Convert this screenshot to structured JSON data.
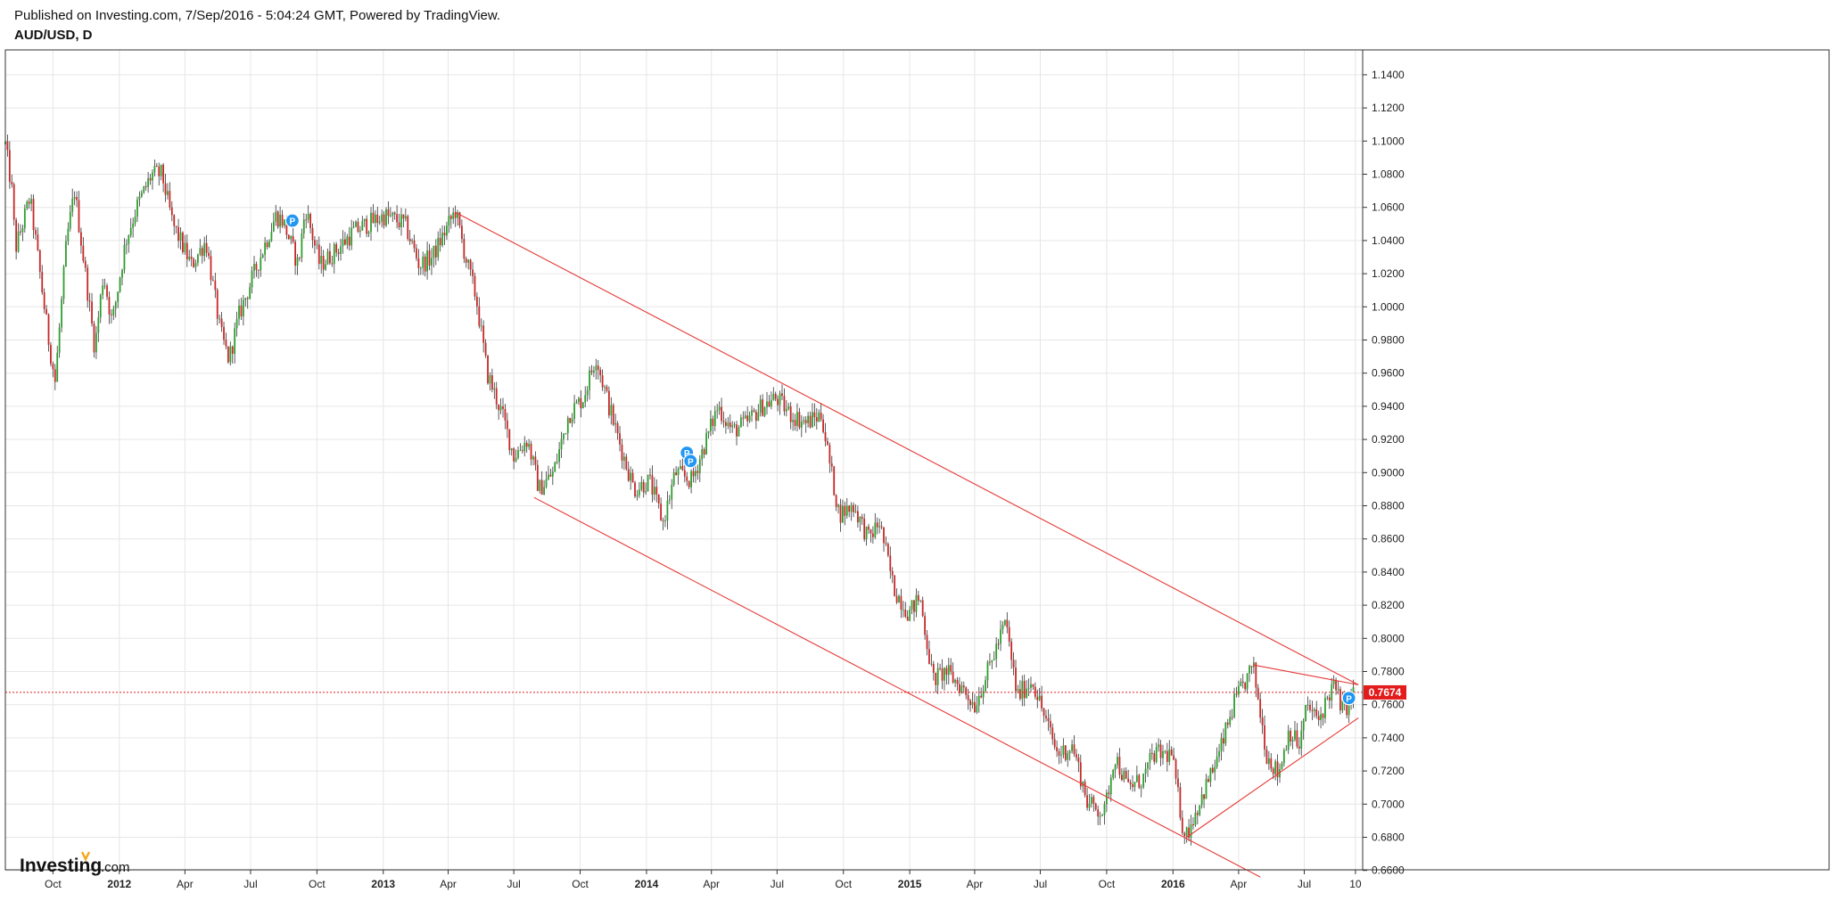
{
  "header": {
    "published_line": "Published on Investing.com, 7/Sep/2016 - 5:04:24 GMT, Powered by TradingView.",
    "symbol_line": "AUD/USD, D"
  },
  "logo": {
    "brand": "Investing",
    "suffix": ".com"
  },
  "colors": {
    "up_candle": "#2e9e2e",
    "down_candle": "#c62828",
    "trendline": "#e53935",
    "price_tag": "#e31b1b",
    "marker": "#2196f3",
    "grid": "#e6e6e6"
  },
  "chart_data": {
    "type": "candlestick",
    "title": "AUD/USD, D",
    "ylim": [
      0.655,
      1.155
    ],
    "x_range": [
      "2011-07-27",
      "2016-09-20"
    ],
    "y_ticks": [
      "1.1400",
      "1.1200",
      "1.1000",
      "1.0800",
      "1.0600",
      "1.0400",
      "1.0200",
      "1.0000",
      "0.9800",
      "0.9600",
      "0.9400",
      "0.9200",
      "0.9000",
      "0.8800",
      "0.8600",
      "0.8400",
      "0.8200",
      "0.8000",
      "0.7800",
      "0.7600",
      "0.7400",
      "0.7200",
      "0.7000",
      "0.6800",
      "0.6600"
    ],
    "x_ticks": [
      {
        "label": "Oct",
        "date": "2011-10-01",
        "bold": false
      },
      {
        "label": "2012",
        "date": "2012-01-01",
        "bold": true
      },
      {
        "label": "Apr",
        "date": "2012-04-01",
        "bold": false
      },
      {
        "label": "Jul",
        "date": "2012-07-01",
        "bold": false
      },
      {
        "label": "Oct",
        "date": "2012-10-01",
        "bold": false
      },
      {
        "label": "2013",
        "date": "2013-01-01",
        "bold": true
      },
      {
        "label": "Apr",
        "date": "2013-04-01",
        "bold": false
      },
      {
        "label": "Jul",
        "date": "2013-07-01",
        "bold": false
      },
      {
        "label": "Oct",
        "date": "2013-10-01",
        "bold": false
      },
      {
        "label": "2014",
        "date": "2014-01-01",
        "bold": true
      },
      {
        "label": "Apr",
        "date": "2014-04-01",
        "bold": false
      },
      {
        "label": "Jul",
        "date": "2014-07-01",
        "bold": false
      },
      {
        "label": "Oct",
        "date": "2014-10-01",
        "bold": false
      },
      {
        "label": "2015",
        "date": "2015-01-01",
        "bold": true
      },
      {
        "label": "Apr",
        "date": "2015-04-01",
        "bold": false
      },
      {
        "label": "Jul",
        "date": "2015-07-01",
        "bold": false
      },
      {
        "label": "Oct",
        "date": "2015-10-01",
        "bold": false
      },
      {
        "label": "2016",
        "date": "2016-01-01",
        "bold": true
      },
      {
        "label": "Apr",
        "date": "2016-04-01",
        "bold": false
      },
      {
        "label": "Jul",
        "date": "2016-07-01",
        "bold": false
      },
      {
        "label": "10",
        "date": "2016-09-10",
        "bold": false
      }
    ],
    "last_price": 0.7674,
    "last_price_label": "0.7674",
    "price_path": [
      [
        "2011-07-27",
        1.098
      ],
      [
        "2011-08-05",
        1.07
      ],
      [
        "2011-08-10",
        1.035
      ],
      [
        "2011-08-20",
        1.05
      ],
      [
        "2011-08-30",
        1.066
      ],
      [
        "2011-09-10",
        1.03
      ],
      [
        "2011-09-25",
        0.98
      ],
      [
        "2011-10-04",
        0.955
      ],
      [
        "2011-10-20",
        1.04
      ],
      [
        "2011-10-31",
        1.07
      ],
      [
        "2011-11-15",
        1.02
      ],
      [
        "2011-11-28",
        0.975
      ],
      [
        "2011-12-10",
        1.02
      ],
      [
        "2011-12-22",
        0.99
      ],
      [
        "2012-01-10",
        1.04
      ],
      [
        "2012-01-25",
        1.06
      ],
      [
        "2012-02-15",
        1.08
      ],
      [
        "2012-02-29",
        1.08
      ],
      [
        "2012-03-15",
        1.05
      ],
      [
        "2012-04-10",
        1.025
      ],
      [
        "2012-04-30",
        1.04
      ],
      [
        "2012-05-20",
        0.985
      ],
      [
        "2012-06-01",
        0.968
      ],
      [
        "2012-06-15",
        0.995
      ],
      [
        "2012-07-10",
        1.025
      ],
      [
        "2012-08-05",
        1.055
      ],
      [
        "2012-08-15",
        1.052
      ],
      [
        "2012-09-05",
        1.025
      ],
      [
        "2012-09-15",
        1.06
      ],
      [
        "2012-10-05",
        1.025
      ],
      [
        "2012-10-30",
        1.035
      ],
      [
        "2012-11-20",
        1.045
      ],
      [
        "2012-12-10",
        1.05
      ],
      [
        "2013-01-03",
        1.055
      ],
      [
        "2013-01-31",
        1.05
      ],
      [
        "2013-02-20",
        1.025
      ],
      [
        "2013-03-10",
        1.03
      ],
      [
        "2013-04-11",
        1.058
      ],
      [
        "2013-04-25",
        1.03
      ],
      [
        "2013-05-10",
        1.005
      ],
      [
        "2013-05-25",
        0.96
      ],
      [
        "2013-06-15",
        0.935
      ],
      [
        "2013-07-01",
        0.91
      ],
      [
        "2013-07-20",
        0.92
      ],
      [
        "2013-08-05",
        0.89
      ],
      [
        "2013-08-25",
        0.9
      ],
      [
        "2013-09-15",
        0.935
      ],
      [
        "2013-10-05",
        0.945
      ],
      [
        "2013-10-23",
        0.97
      ],
      [
        "2013-11-10",
        0.94
      ],
      [
        "2013-11-30",
        0.91
      ],
      [
        "2013-12-15",
        0.89
      ],
      [
        "2014-01-05",
        0.895
      ],
      [
        "2014-01-24",
        0.87
      ],
      [
        "2014-02-10",
        0.9
      ],
      [
        "2014-03-05",
        0.895
      ],
      [
        "2014-03-25",
        0.92
      ],
      [
        "2014-04-10",
        0.94
      ],
      [
        "2014-04-30",
        0.925
      ],
      [
        "2014-05-20",
        0.93
      ],
      [
        "2014-06-10",
        0.94
      ],
      [
        "2014-06-30",
        0.945
      ],
      [
        "2014-07-20",
        0.935
      ],
      [
        "2014-08-10",
        0.93
      ],
      [
        "2014-09-01",
        0.935
      ],
      [
        "2014-09-10",
        0.91
      ],
      [
        "2014-09-25",
        0.875
      ],
      [
        "2014-10-15",
        0.88
      ],
      [
        "2014-11-05",
        0.86
      ],
      [
        "2014-11-20",
        0.87
      ],
      [
        "2014-12-10",
        0.83
      ],
      [
        "2014-12-31",
        0.815
      ],
      [
        "2015-01-15",
        0.825
      ],
      [
        "2015-02-02",
        0.775
      ],
      [
        "2015-02-20",
        0.78
      ],
      [
        "2015-03-15",
        0.77
      ],
      [
        "2015-04-01",
        0.76
      ],
      [
        "2015-04-15",
        0.775
      ],
      [
        "2015-05-14",
        0.81
      ],
      [
        "2015-05-30",
        0.765
      ],
      [
        "2015-06-20",
        0.775
      ],
      [
        "2015-07-05",
        0.755
      ],
      [
        "2015-07-25",
        0.73
      ],
      [
        "2015-08-15",
        0.735
      ],
      [
        "2015-09-05",
        0.7
      ],
      [
        "2015-09-28",
        0.695
      ],
      [
        "2015-10-12",
        0.73
      ],
      [
        "2015-10-30",
        0.71
      ],
      [
        "2015-11-20",
        0.715
      ],
      [
        "2015-12-05",
        0.73
      ],
      [
        "2015-12-30",
        0.73
      ],
      [
        "2016-01-15",
        0.685
      ],
      [
        "2016-01-20",
        0.682
      ],
      [
        "2016-02-15",
        0.71
      ],
      [
        "2016-03-05",
        0.73
      ],
      [
        "2016-03-25",
        0.76
      ],
      [
        "2016-04-21",
        0.783
      ],
      [
        "2016-05-10",
        0.73
      ],
      [
        "2016-05-26",
        0.718
      ],
      [
        "2016-06-10",
        0.745
      ],
      [
        "2016-06-24",
        0.735
      ],
      [
        "2016-07-05",
        0.76
      ],
      [
        "2016-07-20",
        0.75
      ],
      [
        "2016-08-10",
        0.772
      ],
      [
        "2016-08-25",
        0.756
      ],
      [
        "2016-09-07",
        0.7674
      ]
    ],
    "trendlines": [
      {
        "start": [
          "2013-04-11",
          1.057
        ],
        "end": [
          "2016-09-14",
          0.772
        ]
      },
      {
        "start": [
          "2013-07-29",
          0.885
        ],
        "end": [
          "2016-05-01",
          0.656
        ]
      },
      {
        "start": [
          "2016-04-21",
          0.784
        ],
        "end": [
          "2016-09-14",
          0.772
        ]
      },
      {
        "start": [
          "2016-01-20",
          0.68
        ],
        "end": [
          "2016-09-14",
          0.752
        ]
      }
    ],
    "price_line_style": "dotted",
    "markers": [
      {
        "date": "2012-08-28",
        "price": 1.052,
        "label": "P"
      },
      {
        "date": "2014-02-26",
        "price": 0.912,
        "label": "P"
      },
      {
        "date": "2014-03-03",
        "price": 0.907,
        "label": "P"
      },
      {
        "date": "2016-09-01",
        "price": 0.764,
        "label": "P"
      }
    ],
    "grid": true
  }
}
